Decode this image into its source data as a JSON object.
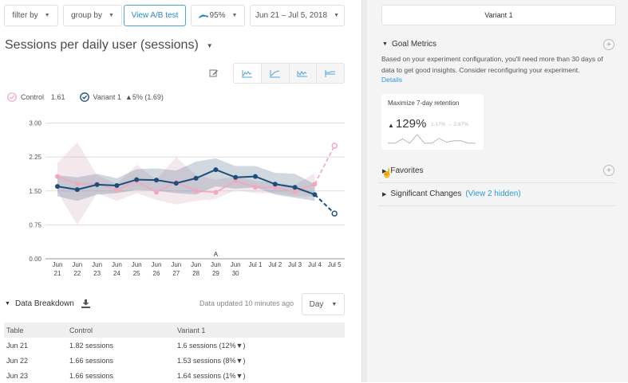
{
  "toolbar": {
    "filter_label": "filter by",
    "group_label": "group by",
    "ab_test_label": "View A/B test",
    "confidence_label": "95%",
    "date_range_label": "Jun 21 – Jul 5, 2018"
  },
  "report": {
    "title": "Sessions per daily user (sessions)",
    "chart_type_buttons": [
      "line-chart",
      "cumulative-chart",
      "rolling-chart",
      "step-chart"
    ],
    "active_chart_type": "line-chart"
  },
  "legend": {
    "control": {
      "label": "Control",
      "value": "1.61"
    },
    "variant": {
      "label": "Variant 1",
      "change": "▲5% (1.69)"
    }
  },
  "colors": {
    "control": "#f2a7be",
    "variant": "#1d4e79",
    "link": "#2a9bd8",
    "primary_button": "#2a87c8"
  },
  "chart_data": {
    "type": "line",
    "title": "Sessions per daily user (sessions)",
    "xlabel": "",
    "ylabel": "",
    "ylim": [
      0,
      3
    ],
    "yticks": [
      "0.00",
      "0.75",
      "1.50",
      "2.25",
      "3.00"
    ],
    "grid": true,
    "legend_placement": "top-left",
    "categories": [
      [
        "Jun",
        "21"
      ],
      [
        "Jun",
        "22"
      ],
      [
        "Jun",
        "23"
      ],
      [
        "Jun",
        "24"
      ],
      [
        "Jun",
        "25"
      ],
      [
        "Jun",
        "26"
      ],
      [
        "Jun",
        "27"
      ],
      [
        "Jun",
        "28"
      ],
      [
        "Jun",
        "29"
      ],
      [
        "Jun",
        "30"
      ],
      [
        "Jul 1"
      ],
      [
        "Jul 2"
      ],
      [
        "Jul 3"
      ],
      [
        "Jul 4"
      ],
      [
        "Jul 5"
      ]
    ],
    "annotations": [
      {
        "category_index": 8,
        "label": "A"
      }
    ],
    "series": [
      {
        "name": "Control",
        "values": [
          1.82,
          1.66,
          1.66,
          1.52,
          1.72,
          1.47,
          1.7,
          1.5,
          1.47,
          1.72,
          1.58,
          1.58,
          1.48,
          1.65,
          2.5
        ],
        "band_upper": [
          2.12,
          2.58,
          1.85,
          1.65,
          2.08,
          1.75,
          2.25,
          1.85,
          1.75,
          1.82,
          1.72,
          1.68,
          1.62,
          1.9
        ],
        "band_lower": [
          1.48,
          0.75,
          1.45,
          1.28,
          1.45,
          1.3,
          1.2,
          1.28,
          1.32,
          1.52,
          1.45,
          1.45,
          1.38,
          1.38
        ],
        "dashed_from_index": 13
      },
      {
        "name": "Variant 1",
        "values": [
          1.6,
          1.53,
          1.64,
          1.62,
          1.75,
          1.74,
          1.67,
          1.78,
          1.97,
          1.8,
          1.82,
          1.65,
          1.58,
          1.42,
          1.0
        ],
        "band_upper": [
          1.85,
          1.8,
          1.88,
          1.78,
          1.98,
          2.0,
          1.95,
          2.15,
          2.22,
          2.05,
          2.05,
          1.9,
          1.88,
          1.65
        ],
        "band_lower": [
          1.38,
          1.28,
          1.42,
          1.45,
          1.52,
          1.5,
          1.45,
          1.42,
          1.6,
          1.55,
          1.58,
          1.42,
          1.35,
          1.28
        ],
        "dashed_from_index": 13
      }
    ]
  },
  "breakdown": {
    "title": "Data Breakdown",
    "updated_text": "Data updated 10 minutes ago",
    "interval": "Day",
    "columns": [
      "Table",
      "Control",
      "Variant 1"
    ],
    "rows": [
      [
        "Jun 21",
        "1.82 sessions",
        "1.6 sessions (12%▼)"
      ],
      [
        "Jun 22",
        "1.66 sessions",
        "1.53 sessions (8%▼)"
      ],
      [
        "Jun 23",
        "1.66 sessions",
        "1.64 sessions (1%▼)"
      ]
    ]
  },
  "sidebar": {
    "variant_label": "Variant 1",
    "goal_metrics": {
      "title": "Goal Metrics",
      "message": "Based on your experiment configuration, you'll need more than 30 days of data to get good insights. Consider reconfiguring your experiment.",
      "details_link": "Details",
      "card": {
        "name": "Maximize 7-day retention",
        "change": "129%",
        "range": "1.17% → 2.67%",
        "sparkline": [
          0.1,
          0.1,
          0.55,
          0.1,
          1.0,
          0.1,
          0.1,
          0.6,
          0.2,
          0.35,
          0.35,
          0.1,
          0.1
        ]
      }
    },
    "favorites_title": "Favorites",
    "significant_changes": {
      "title": "Significant Changes",
      "hidden_link": "(View 2 hidden)"
    }
  }
}
